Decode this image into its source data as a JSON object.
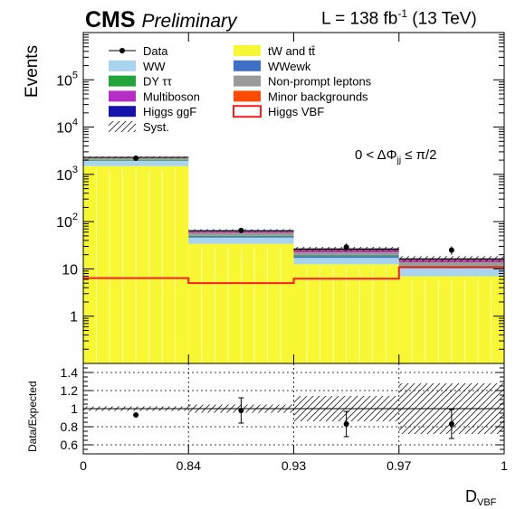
{
  "header": {
    "experiment": "CMS",
    "status": "Preliminary",
    "lumi_prefix": "L = 138 fb",
    "lumi_exp": "-1",
    "lumi_suffix": " (13 TeV)"
  },
  "region_label": "0 < ΔΦjj ≤ π/2",
  "chart_data": [
    {
      "type": "bar",
      "subtype": "stacked-histogram",
      "ylabel": "Events",
      "yscale": "log",
      "ylim": [
        0.1,
        1000000
      ],
      "yticks": [
        "1",
        "10",
        "10^2",
        "10^3",
        "10^4",
        "10^5"
      ],
      "bin_edges": [
        0,
        0.84,
        0.93,
        0.97,
        1
      ],
      "bin_edges_labels": [
        "0",
        "0.84",
        "0.93",
        "0.97",
        "1"
      ],
      "legend_position": "top",
      "data": {
        "name": "Data",
        "values": [
          2200,
          65,
          29,
          25
        ],
        "errors": [
          47,
          8,
          5.4,
          5
        ]
      },
      "stack": [
        {
          "name": "tW and tt̄",
          "color": "#f7f734",
          "values": [
            1500,
            34,
            12.5,
            7
          ]
        },
        {
          "name": "WW",
          "color": "#a8d4f0",
          "values": [
            430,
            12,
            4.6,
            3.3
          ]
        },
        {
          "name": "WWewk",
          "color": "#3e70c8",
          "values": [
            13,
            2.5,
            1.5,
            1.1
          ]
        },
        {
          "name": "DY ττ",
          "color": "#23a43a",
          "values": [
            85,
            1.8,
            0.7,
            0.35
          ]
        },
        {
          "name": "Non-prompt leptons",
          "color": "#9a9a9a",
          "values": [
            190,
            7,
            3.2,
            2.1
          ]
        },
        {
          "name": "Multiboson",
          "color": "#b42ec6",
          "values": [
            20,
            2.5,
            1.6,
            1.1
          ]
        },
        {
          "name": "Minor backgrounds",
          "color": "#ff4a00",
          "values": [
            18,
            1.6,
            0.9,
            0.6
          ]
        },
        {
          "name": "Higgs ggF",
          "color": "#1414ac",
          "values": [
            34,
            3.2,
            1.6,
            0.8
          ]
        }
      ],
      "signal": {
        "name": "Higgs VBF",
        "color": "#ff1c1c",
        "values": [
          6.4,
          5,
          6.2,
          10.8
        ]
      },
      "syst": {
        "name": "Syst.",
        "rel_unc": [
          0.05,
          0.07,
          0.1,
          0.14
        ]
      }
    },
    {
      "type": "scatter",
      "subtype": "ratio",
      "ylabel": "Data/Expected",
      "xlabel_main": "D",
      "xlabel_sub": "VBF",
      "ylim": [
        0.5,
        1.5
      ],
      "yticks": [
        "0.6",
        "0.8",
        "1",
        "1.2",
        "1.4"
      ],
      "grid": true,
      "points": [
        {
          "x": 0.5,
          "y": 0.93,
          "err": 0
        },
        {
          "x": 1.5,
          "y": 0.98,
          "err": 0.14
        },
        {
          "x": 2.5,
          "y": 0.83,
          "err": 0.14
        },
        {
          "x": 3.5,
          "y": 0.83,
          "err": 0.16
        }
      ],
      "syst_band": [
        {
          "lo": 0.975,
          "hi": 1.025
        },
        {
          "lo": 0.955,
          "hi": 1.045
        },
        {
          "lo": 0.86,
          "hi": 1.14
        },
        {
          "lo": 0.72,
          "hi": 1.28
        }
      ]
    }
  ]
}
